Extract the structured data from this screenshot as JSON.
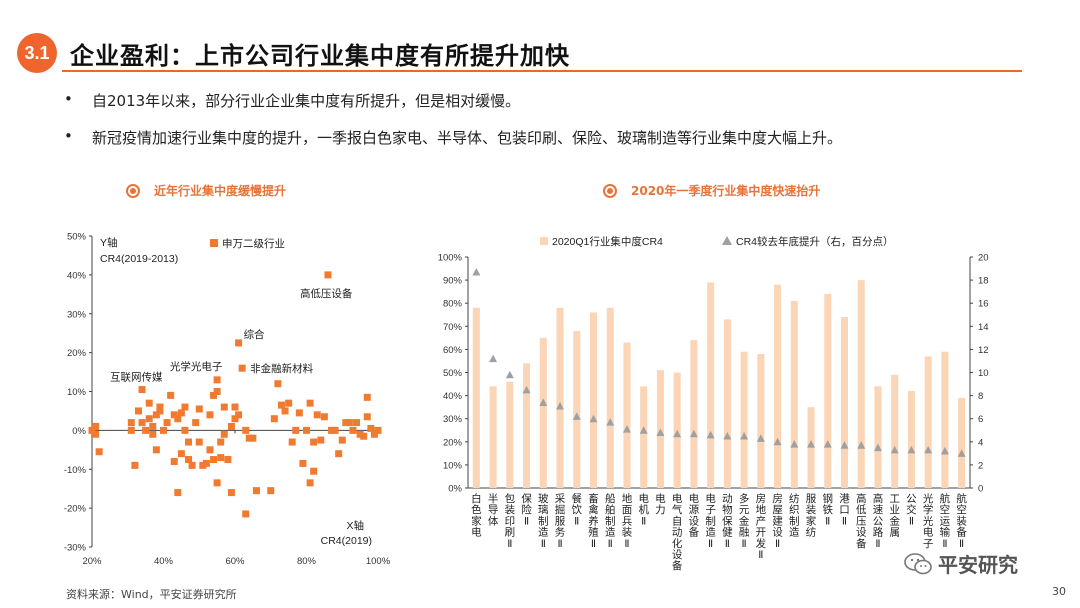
{
  "header": {
    "section_number": "3.1",
    "title": "企业盈利：上市公司行业集中度有所提升加快"
  },
  "bullets": [
    "自2013年以来，部分行业企业集中度有所提升，但是相对缓慢。",
    "新冠疫情加速行业集中度的提升，一季报白色家电、半导体、包装印刷、保险、玻璃制造等行业集中度大幅上升。"
  ],
  "footer": {
    "source": "资料来源：Wind，平安证券研究所",
    "page": "30",
    "watermark": "平安研究"
  },
  "colors": {
    "accent": "#f0642d",
    "scatter": "#f07a30",
    "bar": "#fbd5b5",
    "marker": "#a0a0a0"
  },
  "chart_data": [
    {
      "type": "scatter",
      "title": "近年行业集中度缓慢提升",
      "y_axis_title": [
        "Y轴",
        "CR4(2019-2013)"
      ],
      "x_axis_title": [
        "X轴",
        "CR4(2019)"
      ],
      "legend": "申万二级行业",
      "xlim": [
        0.2,
        1.0
      ],
      "ylim": [
        -0.3,
        0.5
      ],
      "x_ticks": [
        "20%",
        "40%",
        "60%",
        "80%",
        "100%"
      ],
      "y_ticks": [
        "-30%",
        "-20%",
        "-10%",
        "0%",
        "10%",
        "20%",
        "30%",
        "40%",
        "50%"
      ],
      "annotations": [
        {
          "label": "高低压设备",
          "x": 0.86,
          "y": 0.4
        },
        {
          "label": "综合",
          "x": 0.61,
          "y": 0.225
        },
        {
          "label": "非金融新材料",
          "x": 0.62,
          "y": 0.16
        },
        {
          "label": "光学光电子",
          "x": 0.58,
          "y": 0.13
        },
        {
          "label": "互联网传媒",
          "x": 0.34,
          "y": 0.105
        }
      ],
      "points": [
        [
          0.2,
          0.0
        ],
        [
          0.21,
          0.01
        ],
        [
          0.21,
          -0.01
        ],
        [
          0.22,
          -0.055
        ],
        [
          0.31,
          0.0
        ],
        [
          0.31,
          0.02
        ],
        [
          0.32,
          -0.09
        ],
        [
          0.33,
          0.05
        ],
        [
          0.34,
          0.02
        ],
        [
          0.34,
          0.105
        ],
        [
          0.35,
          0.0
        ],
        [
          0.36,
          0.03
        ],
        [
          0.36,
          0.07
        ],
        [
          0.37,
          -0.01
        ],
        [
          0.37,
          0.01
        ],
        [
          0.38,
          0.04
        ],
        [
          0.38,
          -0.05
        ],
        [
          0.39,
          0.06
        ],
        [
          0.39,
          0.05
        ],
        [
          0.4,
          0.0
        ],
        [
          0.41,
          0.02
        ],
        [
          0.42,
          0.09
        ],
        [
          0.43,
          0.04
        ],
        [
          0.43,
          -0.08
        ],
        [
          0.44,
          -0.16
        ],
        [
          0.44,
          0.03
        ],
        [
          0.45,
          0.045
        ],
        [
          0.45,
          -0.06
        ],
        [
          0.46,
          0.06
        ],
        [
          0.46,
          0.0
        ],
        [
          0.47,
          -0.03
        ],
        [
          0.47,
          -0.075
        ],
        [
          0.48,
          -0.09
        ],
        [
          0.49,
          0.02
        ],
        [
          0.5,
          0.055
        ],
        [
          0.5,
          -0.03
        ],
        [
          0.51,
          -0.09
        ],
        [
          0.52,
          -0.085
        ],
        [
          0.53,
          -0.05
        ],
        [
          0.53,
          0.04
        ],
        [
          0.54,
          0.09
        ],
        [
          0.54,
          -0.075
        ],
        [
          0.55,
          0.13
        ],
        [
          0.55,
          0.1
        ],
        [
          0.55,
          -0.135
        ],
        [
          0.56,
          -0.07
        ],
        [
          0.56,
          -0.03
        ],
        [
          0.57,
          0.06
        ],
        [
          0.57,
          -0.01
        ],
        [
          0.58,
          -0.075
        ],
        [
          0.59,
          0.01
        ],
        [
          0.59,
          -0.16
        ],
        [
          0.6,
          0.03
        ],
        [
          0.6,
          0.06
        ],
        [
          0.61,
          0.225
        ],
        [
          0.61,
          0.04
        ],
        [
          0.62,
          0.16
        ],
        [
          0.63,
          0.0
        ],
        [
          0.63,
          -0.215
        ],
        [
          0.64,
          -0.02
        ],
        [
          0.65,
          -0.02
        ],
        [
          0.66,
          -0.155
        ],
        [
          0.7,
          -0.155
        ],
        [
          0.71,
          0.03
        ],
        [
          0.72,
          0.12
        ],
        [
          0.73,
          0.065
        ],
        [
          0.74,
          0.05
        ],
        [
          0.75,
          0.07
        ],
        [
          0.76,
          -0.03
        ],
        [
          0.77,
          0.0
        ],
        [
          0.78,
          0.045
        ],
        [
          0.79,
          -0.085
        ],
        [
          0.8,
          0.0
        ],
        [
          0.81,
          0.07
        ],
        [
          0.81,
          -0.135
        ],
        [
          0.82,
          -0.105
        ],
        [
          0.82,
          -0.03
        ],
        [
          0.83,
          0.04
        ],
        [
          0.84,
          -0.025
        ],
        [
          0.85,
          0.035
        ],
        [
          0.86,
          0.4
        ],
        [
          0.87,
          0.0
        ],
        [
          0.88,
          0.0
        ],
        [
          0.89,
          -0.06
        ],
        [
          0.9,
          -0.025
        ],
        [
          0.91,
          0.02
        ],
        [
          0.92,
          0.02
        ],
        [
          0.93,
          0.0
        ],
        [
          0.94,
          0.02
        ],
        [
          0.95,
          -0.01
        ],
        [
          0.96,
          -0.015
        ],
        [
          0.97,
          0.085
        ],
        [
          0.97,
          0.035
        ],
        [
          0.98,
          0.005
        ],
        [
          0.99,
          -0.01
        ],
        [
          1.0,
          0.0
        ]
      ]
    },
    {
      "type": "bar",
      "title": "2020年一季度行业集中度快速抬升",
      "legend": [
        "2020Q1行业集中度CR4",
        "CR4较去年底提升（右，百分点）"
      ],
      "y_left_ticks": [
        "0%",
        "10%",
        "20%",
        "30%",
        "40%",
        "50%",
        "60%",
        "70%",
        "80%",
        "90%",
        "100%"
      ],
      "y_right_ticks": [
        "0",
        "2",
        "4",
        "6",
        "8",
        "10",
        "12",
        "14",
        "16",
        "18",
        "20"
      ],
      "ylim_left": [
        0,
        100
      ],
      "ylim_right": [
        0,
        20
      ],
      "categories": [
        "白色家电",
        "半导体",
        "包装印刷Ⅱ",
        "保险Ⅱ",
        "玻璃制造Ⅱ",
        "采掘服务Ⅱ",
        "餐饮Ⅱ",
        "畜禽养殖Ⅱ",
        "船舶制造Ⅱ",
        "地面兵装Ⅱ",
        "电机Ⅱ",
        "电力",
        "电气自动化设备",
        "电源设备",
        "电子制造Ⅱ",
        "动物保健Ⅱ",
        "多元金融Ⅱ",
        "房地产开发Ⅱ",
        "房屋建设Ⅱ",
        "纺织制造",
        "服装家纺",
        "钢铁Ⅱ",
        "港口Ⅱ",
        "高低压设备",
        "高速公路Ⅱ",
        "工业金属",
        "公交Ⅱ",
        "光学光电子",
        "航空运输Ⅱ",
        "航空装备Ⅱ"
      ],
      "cr4": [
        78,
        44,
        46,
        54,
        65,
        78,
        68,
        76,
        78,
        63,
        44,
        51,
        50,
        64,
        89,
        73,
        59,
        58,
        88,
        81,
        35,
        84,
        74,
        90,
        44,
        49,
        42,
        57,
        59,
        39
      ],
      "change": [
        18.7,
        11.2,
        9.8,
        8.5,
        7.4,
        7.1,
        6.2,
        6.0,
        5.7,
        5.1,
        5.0,
        4.8,
        4.7,
        4.7,
        4.6,
        4.5,
        4.5,
        4.3,
        4.0,
        3.8,
        3.8,
        3.8,
        3.7,
        3.7,
        3.5,
        3.3,
        3.3,
        3.3,
        3.2,
        3.0
      ]
    }
  ]
}
